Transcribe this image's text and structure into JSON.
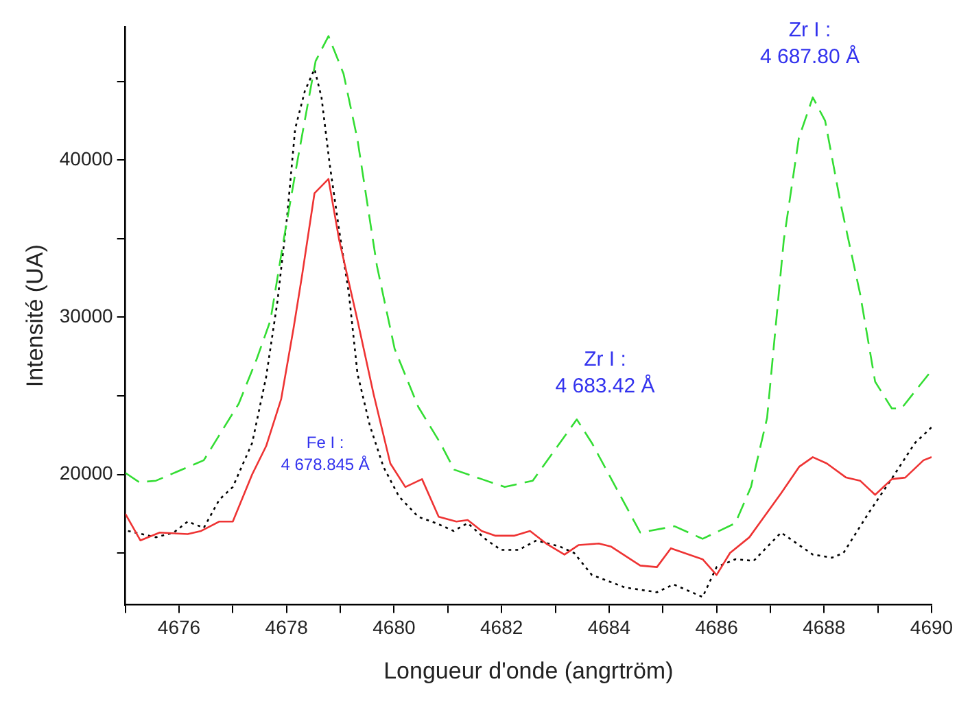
{
  "chart_data": {
    "type": "line",
    "xlabel": "Longueur d'onde (angrtröm)",
    "ylabel": "Intensité (UA)",
    "xlim": [
      4675,
      4690
    ],
    "xticks": [
      {
        "value": 4675,
        "label": null
      },
      4676,
      {
        "value": 4677,
        "label": null
      },
      4678,
      {
        "value": 4679,
        "label": null
      },
      4680,
      {
        "value": 4681,
        "label": null
      },
      4682,
      {
        "value": 4683,
        "label": null
      },
      4684,
      {
        "value": 4685,
        "label": null
      },
      4686,
      {
        "value": 4687,
        "label": null
      },
      4688,
      {
        "value": 4689,
        "label": null
      },
      4690
    ],
    "ylim": [
      11700,
      48500
    ],
    "yticks": [
      {
        "value": 15000,
        "label": null
      },
      20000,
      {
        "value": 25000,
        "label": null
      },
      30000,
      {
        "value": 35000,
        "label": null
      },
      40000,
      {
        "value": 45000,
        "label": null
      }
    ],
    "grid": false,
    "legend": false,
    "marker": "none",
    "series": [
      {
        "color": "#33dd33",
        "line_style": "dashed",
        "x": [
          4675.0,
          4675.26,
          4675.57,
          4676.46,
          4677.11,
          4677.44,
          4677.7,
          4677.95,
          4678.21,
          4678.54,
          4678.78,
          4679.06,
          4679.32,
          4679.68,
          4680.01,
          4680.45,
          4680.86,
          4681.12,
          4681.63,
          4682.06,
          4682.58,
          4683.4,
          4683.68,
          4684.58,
          4685.22,
          4685.74,
          4686.35,
          4686.64,
          4686.94,
          4687.25,
          4687.53,
          4687.79,
          4688.02,
          4688.31,
          4688.67,
          4688.95,
          4689.26,
          4689.44,
          4689.95
        ],
        "values": [
          20100,
          19500,
          19600,
          20900,
          24500,
          27300,
          29800,
          35000,
          40100,
          46300,
          47900,
          45500,
          41300,
          33300,
          28000,
          24300,
          22000,
          20300,
          19700,
          19200,
          19600,
          23500,
          22000,
          16300,
          16700,
          15900,
          16900,
          19200,
          23600,
          34900,
          41400,
          44000,
          42500,
          37200,
          31500,
          25900,
          24200,
          24200,
          26400
        ]
      },
      {
        "color": "#ee3333",
        "line_style": "solid",
        "x": [
          4675.0,
          4675.28,
          4675.64,
          4676.16,
          4676.41,
          4676.75,
          4677.0,
          4677.36,
          4677.62,
          4677.9,
          4678.13,
          4678.29,
          4678.52,
          4678.78,
          4678.98,
          4679.32,
          4679.62,
          4679.93,
          4680.21,
          4680.52,
          4680.83,
          4681.16,
          4681.37,
          4681.63,
          4681.88,
          4682.24,
          4682.53,
          4682.83,
          4683.17,
          4683.43,
          4683.81,
          4684.04,
          4684.58,
          4684.89,
          4685.15,
          4685.74,
          4686.0,
          4686.25,
          4686.61,
          4687.2,
          4687.54,
          4687.79,
          4688.05,
          4688.41,
          4688.67,
          4688.95,
          4689.26,
          4689.51,
          4689.85,
          4690.0
        ],
        "values": [
          17500,
          15800,
          16300,
          16200,
          16400,
          17000,
          17000,
          20000,
          21800,
          24800,
          29300,
          32700,
          37900,
          38800,
          34900,
          29800,
          25100,
          20700,
          19200,
          19700,
          17300,
          17000,
          17100,
          16400,
          16100,
          16100,
          16400,
          15600,
          14900,
          15500,
          15600,
          15400,
          14200,
          14100,
          15300,
          14600,
          13600,
          15000,
          16000,
          18800,
          20500,
          21100,
          20700,
          19800,
          19600,
          18700,
          19700,
          19800,
          20900,
          21100
        ]
      },
      {
        "color": "#000000",
        "line_style": "dotted",
        "x": [
          4675.05,
          4675.57,
          4675.9,
          4676.16,
          4676.46,
          4676.75,
          4677.0,
          4677.36,
          4677.62,
          4677.83,
          4678.01,
          4678.16,
          4678.34,
          4678.52,
          4678.65,
          4678.8,
          4678.98,
          4679.16,
          4679.32,
          4679.55,
          4679.8,
          4680.09,
          4680.45,
          4680.78,
          4681.11,
          4681.37,
          4681.73,
          4681.99,
          4682.32,
          4682.65,
          4683.09,
          4683.35,
          4683.68,
          4684.3,
          4684.89,
          4685.2,
          4685.74,
          4686.0,
          4686.35,
          4686.69,
          4687.2,
          4687.79,
          4688.15,
          4688.36,
          4688.82,
          4689.33,
          4689.69,
          4690.0
        ],
        "values": [
          16400,
          16000,
          16300,
          17000,
          16600,
          18400,
          19200,
          22000,
          26200,
          31000,
          36400,
          42000,
          44400,
          45800,
          44000,
          39800,
          35500,
          31500,
          26400,
          23100,
          20500,
          18600,
          17300,
          16900,
          16400,
          16900,
          15800,
          15200,
          15200,
          15800,
          15400,
          15000,
          13600,
          12800,
          12500,
          13000,
          12200,
          14100,
          14600,
          14500,
          16300,
          14900,
          14700,
          15000,
          17500,
          20100,
          22000,
          23000
        ]
      }
    ],
    "annotations": [
      "Fe I :\n4 678.845 Å",
      "Zr I :\n4 683.42 Å",
      "Zr I :\n4 687.80 Å"
    ]
  }
}
